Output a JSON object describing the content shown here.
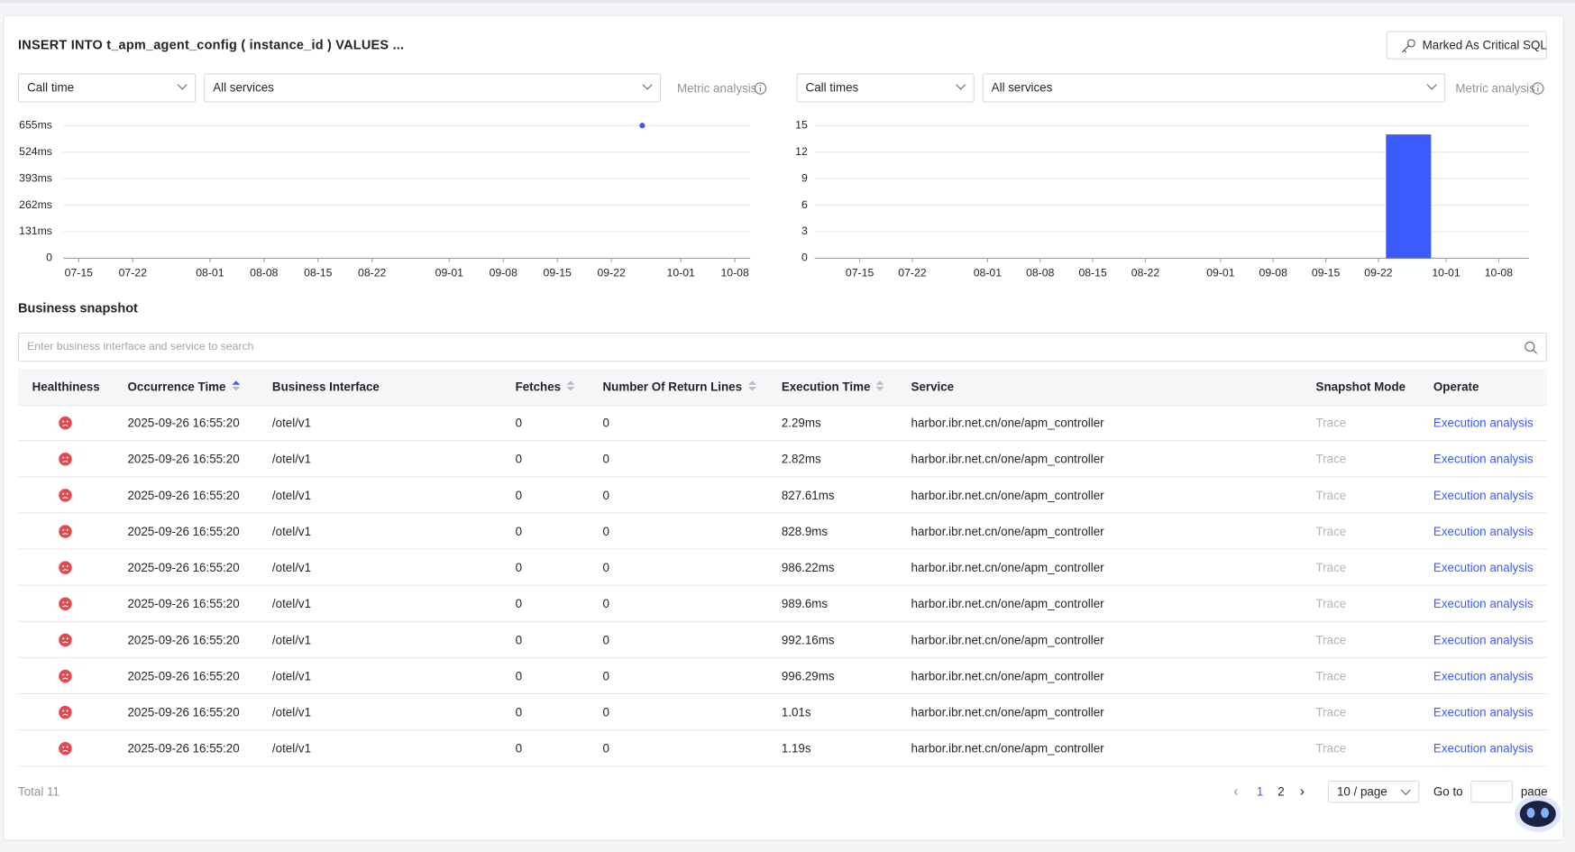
{
  "header": {
    "title": "INSERT INTO t_apm_agent_config ( instance_id ) VALUES ...",
    "button": "Marked As Critical SQL"
  },
  "filters": [
    {
      "metric": "Call time",
      "service": "All services",
      "link": "Metric analysis"
    },
    {
      "metric": "Call times",
      "service": "All services",
      "link": "Metric analysis"
    }
  ],
  "chart_data": [
    {
      "type": "scatter",
      "x": [
        "09-26"
      ],
      "values": [
        655
      ],
      "color": "#3b5bfd",
      "xlim": [
        "07-13",
        "10-10"
      ],
      "xticks": [
        "07-15",
        "07-22",
        "08-01",
        "08-08",
        "08-15",
        "08-22",
        "09-01",
        "09-08",
        "09-15",
        "09-22",
        "10-01",
        "10-08"
      ],
      "ylim": [
        0,
        655
      ],
      "yticks": [
        0,
        {
          "value": 131,
          "label": "131ms"
        },
        {
          "value": 262,
          "label": "262ms"
        },
        {
          "value": 393,
          "label": "393ms"
        },
        {
          "value": 524,
          "label": "524ms"
        },
        {
          "value": 655,
          "label": "655ms"
        }
      ],
      "grid": true
    },
    {
      "type": "histogram",
      "bins": [
        "09-23",
        "09-29"
      ],
      "values": [
        14
      ],
      "color": "#3b5bfd",
      "xlim": [
        "07-09",
        "10-12"
      ],
      "xticks": [
        "07-15",
        "07-22",
        "08-01",
        "08-08",
        "08-15",
        "08-22",
        "09-01",
        "09-08",
        "09-15",
        "09-22",
        "10-01",
        "10-08"
      ],
      "ylim": [
        0,
        15
      ],
      "yticks": [
        0,
        3,
        6,
        9,
        12,
        15
      ],
      "grid": true
    }
  ],
  "snapshot": {
    "title": "Business snapshot",
    "search_placeholder": "Enter business interface and service to search"
  },
  "table": {
    "columns": [
      "Healthiness",
      "Occurrence Time",
      "Business Interface",
      "Fetches",
      "Number Of Return Lines",
      "Execution Time",
      "Service",
      "Snapshot Mode",
      "Operate"
    ],
    "rows": [
      [
        "2025-09-26 16:55:20",
        "/otel/v1",
        0,
        0,
        "2.29ms",
        "harbor.ibr.net.cn/one/apm_controller",
        "Trace",
        "Execution analysis"
      ],
      [
        "2025-09-26 16:55:20",
        "/otel/v1",
        0,
        0,
        "2.82ms",
        "harbor.ibr.net.cn/one/apm_controller",
        "Trace",
        "Execution analysis"
      ],
      [
        "2025-09-26 16:55:20",
        "/otel/v1",
        0,
        0,
        "827.61ms",
        "harbor.ibr.net.cn/one/apm_controller",
        "Trace",
        "Execution analysis"
      ],
      [
        "2025-09-26 16:55:20",
        "/otel/v1",
        0,
        0,
        "828.9ms",
        "harbor.ibr.net.cn/one/apm_controller",
        "Trace",
        "Execution analysis"
      ],
      [
        "2025-09-26 16:55:20",
        "/otel/v1",
        0,
        0,
        "986.22ms",
        "harbor.ibr.net.cn/one/apm_controller",
        "Trace",
        "Execution analysis"
      ],
      [
        "2025-09-26 16:55:20",
        "/otel/v1",
        0,
        0,
        "989.6ms",
        "harbor.ibr.net.cn/one/apm_controller",
        "Trace",
        "Execution analysis"
      ],
      [
        "2025-09-26 16:55:20",
        "/otel/v1",
        0,
        0,
        "992.16ms",
        "harbor.ibr.net.cn/one/apm_controller",
        "Trace",
        "Execution analysis"
      ],
      [
        "2025-09-26 16:55:20",
        "/otel/v1",
        0,
        0,
        "996.29ms",
        "harbor.ibr.net.cn/one/apm_controller",
        "Trace",
        "Execution analysis"
      ],
      [
        "2025-09-26 16:55:20",
        "/otel/v1",
        0,
        0,
        "1.01s",
        "harbor.ibr.net.cn/one/apm_controller",
        "Trace",
        "Execution analysis"
      ],
      [
        "2025-09-26 16:55:20",
        "/otel/v1",
        0,
        0,
        "1.19s",
        "harbor.ibr.net.cn/one/apm_controller",
        "Trace",
        "Execution analysis"
      ]
    ]
  },
  "pagination": {
    "total": "Total 11",
    "pages": [
      "1",
      "2"
    ],
    "page_size": "10 / page",
    "goto": "Go to",
    "page": "page"
  }
}
